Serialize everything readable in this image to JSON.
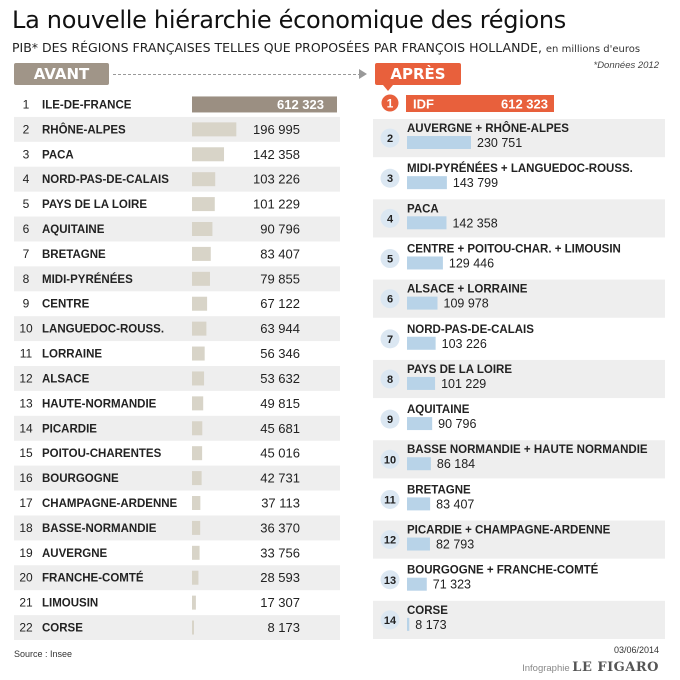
{
  "title": "La nouvelle hiérarchie économique des régions",
  "subtitle": "PIB* DES RÉGIONS FRANÇAISES TELLES QUE PROPOSÉES PAR FRANÇOIS HOLLANDE,",
  "unit": "en millions d'euros",
  "note": "*Données 2012",
  "avant_label": "AVANT",
  "apres_label": "APRÈS",
  "source": "Source : Insee",
  "date": "03/06/2014",
  "credit_prefix": "Infographie",
  "credit_brand": "LE FIGARO",
  "colors": {
    "avant_header": "#a09588",
    "avant_bar": "#d8d4c8",
    "avant_first": "#9b8f82",
    "apres_accent": "#e8603c",
    "apres_bar": "#b8d3e8",
    "row_shade": "#eeeeee",
    "circle": "#dbe7f2"
  },
  "chart_data": [
    {
      "type": "bar",
      "name": "AVANT",
      "categories": [
        "ILE-DE-FRANCE",
        "RHÔNE-ALPES",
        "PACA",
        "NORD-PAS-DE-CALAIS",
        "PAYS DE LA LOIRE",
        "AQUITAINE",
        "BRETAGNE",
        "MIDI-PYRÉNÉES",
        "CENTRE",
        "LANGUEDOC-ROUSS.",
        "LORRAINE",
        "ALSACE",
        "HAUTE-NORMANDIE",
        "PICARDIE",
        "POITOU-CHARENTES",
        "BOURGOGNE",
        "CHAMPAGNE-ARDENNE",
        "BASSE-NORMANDIE",
        "AUVERGNE",
        "FRANCHE-COMTÉ",
        "LIMOUSIN",
        "CORSE"
      ],
      "values": [
        612323,
        196995,
        142358,
        103226,
        101229,
        90796,
        83407,
        79855,
        67122,
        63944,
        56346,
        53632,
        49815,
        45681,
        45016,
        42731,
        37113,
        36370,
        33756,
        28593,
        17307,
        8173
      ],
      "labels": [
        "612 323",
        "196 995",
        "142 358",
        "103 226",
        "101 229",
        "90 796",
        "83 407",
        "79 855",
        "67 122",
        "63 944",
        "56 346",
        "53 632",
        "49 815",
        "45 681",
        "45 016",
        "42 731",
        "37 113",
        "36 370",
        "33 756",
        "28 593",
        "17 307",
        "8 173"
      ],
      "ranks": [
        "1",
        "2",
        "3",
        "4",
        "5",
        "6",
        "7",
        "8",
        "9",
        "10",
        "11",
        "12",
        "13",
        "14",
        "15",
        "16",
        "17",
        "18",
        "19",
        "20",
        "21",
        "22"
      ]
    },
    {
      "type": "bar",
      "name": "APRÈS",
      "categories": [
        "IDF",
        "AUVERGNE + RHÔNE-ALPES",
        "MIDI-PYRÉNÉES + LANGUEDOC-ROUSS.",
        "PACA",
        "CENTRE + POITOU-CHAR. + LIMOUSIN",
        "ALSACE + LORRAINE",
        "NORD-PAS-DE-CALAIS",
        "PAYS DE LA LOIRE",
        "AQUITAINE",
        "BASSE NORMANDIE + HAUTE NORMANDIE",
        "BRETAGNE",
        "PICARDIE + CHAMPAGNE-ARDENNE",
        "BOURGOGNE + FRANCHE-COMTÉ",
        "CORSE"
      ],
      "values": [
        612323,
        230751,
        143799,
        142358,
        129446,
        109978,
        103226,
        101229,
        90796,
        86184,
        83407,
        82793,
        71323,
        8173
      ],
      "labels": [
        "612 323",
        "230 751",
        "143 799",
        "142 358",
        "129 446",
        "109 978",
        "103 226",
        "101 229",
        "90 796",
        "86 184",
        "83 407",
        "82 793",
        "71 323",
        "8 173"
      ],
      "ranks": [
        "1",
        "2",
        "3",
        "4",
        "5",
        "6",
        "7",
        "8",
        "9",
        "10",
        "11",
        "12",
        "13",
        "14"
      ]
    }
  ]
}
